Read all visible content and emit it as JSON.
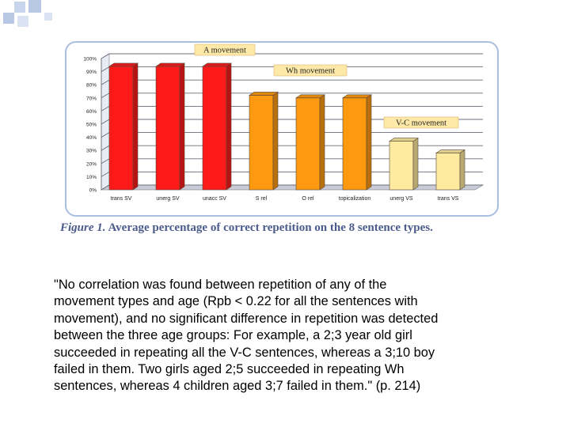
{
  "colors": {
    "background": "#ffffff",
    "frame_border": "#a9bfe2",
    "caption_text": "#4b5b8c",
    "deco_squares": "#b8c7e3",
    "a_bars": "#ff1a1a",
    "wh_bars": "#ff9a10",
    "vc_bars": "#ffeba0",
    "label_box": "#ffe9a8"
  },
  "chart_data": {
    "type": "bar",
    "categories": [
      "trans SV",
      "unerg SV",
      "unacc SV",
      "S rel",
      "O rel",
      "topicalization",
      "unerg VS",
      "trans VS"
    ],
    "values": [
      94,
      94,
      94,
      72,
      70,
      70,
      37,
      28
    ],
    "yticks": [
      "0%",
      "10%",
      "20%",
      "30%",
      "40%",
      "50%",
      "60%",
      "70%",
      "80%",
      "90%",
      "100%"
    ],
    "ylim": [
      0,
      100
    ],
    "grid": true,
    "groups": [
      {
        "label": "A movement",
        "indices": [
          0,
          1,
          2
        ],
        "color": "#ff1a1a"
      },
      {
        "label": "Wh movement",
        "indices": [
          3,
          4,
          5
        ],
        "color": "#ff9a10"
      },
      {
        "label": "V-C movement",
        "indices": [
          6,
          7
        ],
        "color": "#ffeba0"
      }
    ]
  },
  "caption": {
    "figure_label": "Figure 1.",
    "text": " Average percentage of correct repetition on the 8 sentence types."
  },
  "quote": "\"No correlation was found between repetition of any of the\nmovement types and age (Rpb < 0.22 for all the sentences with\nmovement), and no significant difference in repetition was detected\nbetween the three age groups: For example, a 2;3 year old girl\nsucceeded in repeating all the V-C sentences, whereas a 3;10 boy\nfailed in them. Two girls aged 2;5 succeeded in repeating Wh\nsentences, whereas 4 children aged 3;7 failed in them.\" (p. 214)"
}
